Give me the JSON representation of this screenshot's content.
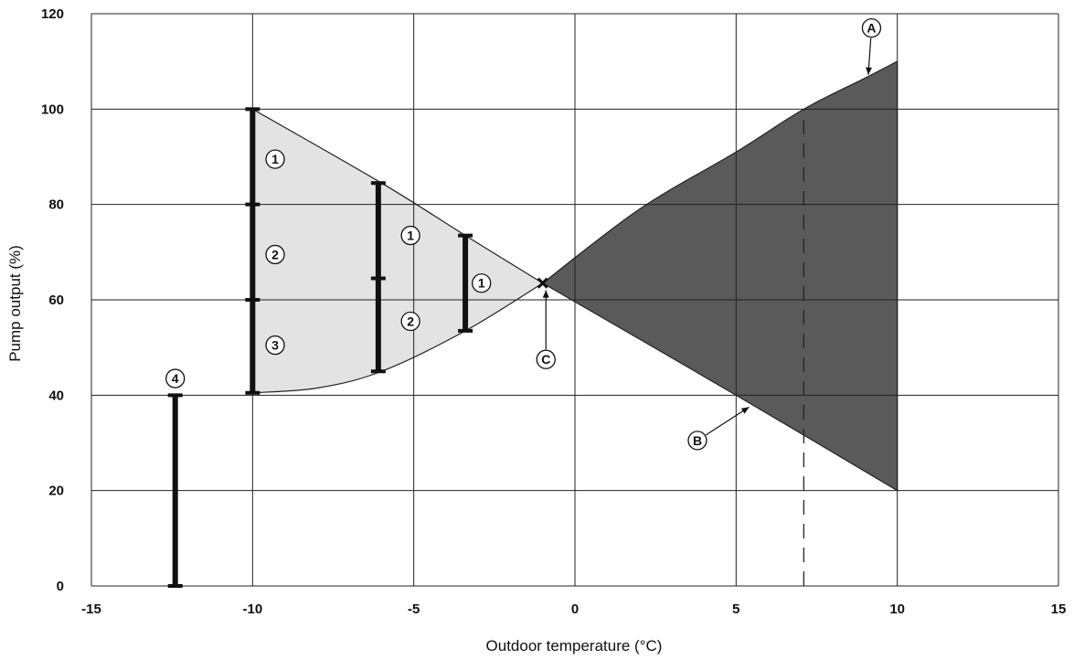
{
  "chart_data": {
    "type": "area",
    "xlabel": "Outdoor temperature (°C)",
    "ylabel": "Pump output (%)",
    "xlim": [
      -15,
      15
    ],
    "ylim": [
      0,
      120
    ],
    "x_ticks": [
      -15,
      -10,
      -5,
      0,
      5,
      10,
      15
    ],
    "y_ticks": [
      0,
      20,
      40,
      60,
      80,
      100,
      120
    ],
    "x_tick_labels": [
      "-15",
      "-10",
      "-5",
      "0",
      "5",
      "10",
      "15"
    ],
    "y_tick_labels": [
      "0",
      "20",
      "40",
      "60",
      "80",
      "100",
      "120"
    ],
    "grid": true,
    "colors": {
      "light_region": "#e3e3e3",
      "dark_region": "#5a5a5a",
      "bars": "#111111",
      "grid": "#222222"
    },
    "regions": [
      {
        "fill": "light",
        "upper": [
          [
            -10,
            100
          ],
          [
            -6,
            84.5
          ],
          [
            -3.4,
            73.5
          ],
          [
            -1,
            63.5
          ]
        ],
        "lower": [
          [
            -10,
            40.5
          ],
          [
            -8,
            41.5
          ],
          [
            -6,
            45
          ],
          [
            -3.4,
            53.5
          ],
          [
            -1,
            63.5
          ]
        ]
      },
      {
        "fill": "dark",
        "upper": [
          [
            -1,
            63.5
          ],
          [
            2,
            79
          ],
          [
            5,
            91
          ],
          [
            7.1,
            100
          ],
          [
            9,
            106.5
          ],
          [
            10,
            110
          ]
        ],
        "lower": [
          [
            -1,
            63.5
          ],
          [
            5,
            40
          ],
          [
            10,
            20
          ]
        ]
      }
    ],
    "bars": [
      {
        "x": -10,
        "y0": 40.5,
        "y1": 100,
        "ticks": [
          60,
          80
        ]
      },
      {
        "x": -6.1,
        "y0": 45,
        "y1": 84.5,
        "ticks": [
          64.5
        ]
      },
      {
        "x": -3.4,
        "y0": 53.5,
        "y1": 73.5,
        "ticks": []
      },
      {
        "x": -12.4,
        "y0": 0,
        "y1": 40,
        "ticks": []
      }
    ],
    "circle_markers": [
      {
        "label": "1",
        "x": -9.3,
        "y": 89.5
      },
      {
        "label": "2",
        "x": -9.3,
        "y": 69.5
      },
      {
        "label": "3",
        "x": -9.3,
        "y": 50.5
      },
      {
        "label": "1",
        "x": -5.1,
        "y": 73.5
      },
      {
        "label": "2",
        "x": -5.1,
        "y": 55.5
      },
      {
        "label": "1",
        "x": -2.9,
        "y": 63.5
      },
      {
        "label": "4",
        "x": -12.4,
        "y": 43.5
      }
    ],
    "annotations": [
      {
        "label": "A",
        "x": 9.2,
        "y": 117,
        "arrow_to": [
          9.1,
          107.2
        ]
      },
      {
        "label": "B",
        "x": 3.8,
        "y": 30.5,
        "arrow_to": [
          5.4,
          37.5
        ]
      },
      {
        "label": "C",
        "x": -0.9,
        "y": 47.5,
        "arrow_to": [
          -0.9,
          62
        ]
      }
    ],
    "crossover_point": {
      "x": -1,
      "y": 63.5
    },
    "dashed_reference_line": {
      "x": 7.1,
      "y_from": 0,
      "y_to": 100
    }
  }
}
